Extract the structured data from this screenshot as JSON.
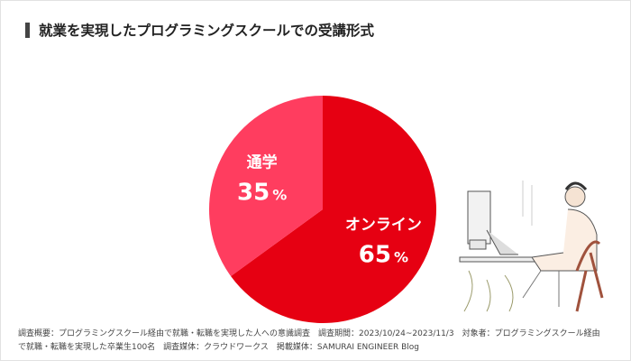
{
  "title": "就業を実現したプログラミングスクールでの受講形式",
  "chart_data": {
    "type": "pie",
    "title": "就業を実現したプログラミングスクールでの受講形式",
    "slices": [
      {
        "label": "オンライン",
        "value": 65,
        "display": "65",
        "unit": "%",
        "color": "#e60012"
      },
      {
        "label": "通学",
        "value": 35,
        "display": "35",
        "unit": "%",
        "color": "#ff3d5f"
      }
    ],
    "start_angle": "top",
    "direction": "clockwise"
  },
  "footnote": {
    "line1": "調査概要：プログラミングスクール経由で就職・転職を実現した人への意識調査　調査期間：2023/10/24~2023/11/3　対象者：プログラミングスクール経由",
    "line2": "で就職・転職を実現した卒業生100名　調査媒体：クラウドワークス　掲載媒体：SAMURAI ENGINEER Blog"
  },
  "illustration": "person-working-at-computer"
}
